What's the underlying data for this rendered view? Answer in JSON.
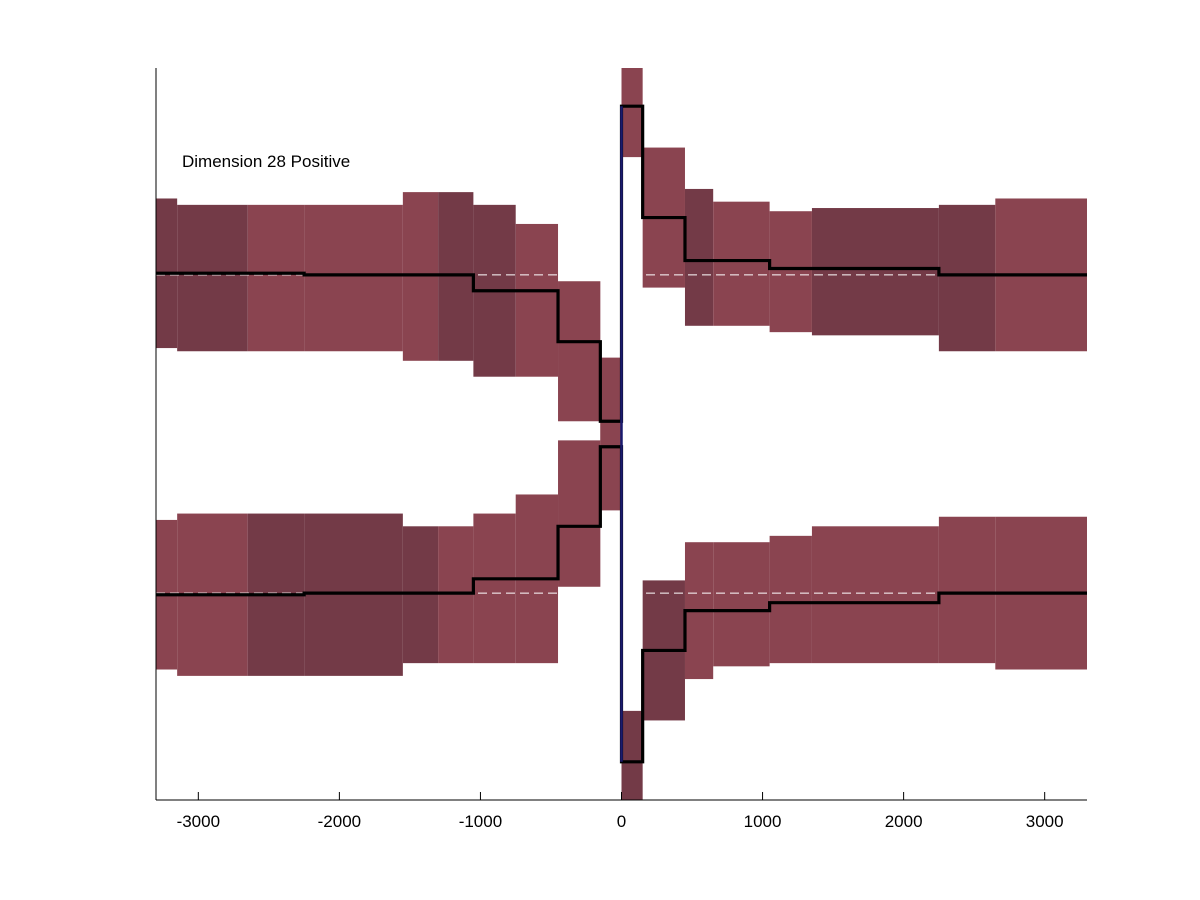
{
  "chart_data": {
    "type": "line",
    "title": "",
    "xlabel": "",
    "ylabel": "",
    "annotation": "Dimension 28 Positive",
    "xlim": [
      -3300,
      3300
    ],
    "ylim": [
      -1.15,
      1.15
    ],
    "grid": false,
    "legend": "none",
    "x_ticks": [
      {
        "value": -3000,
        "label": "-3000"
      },
      {
        "value": -2000,
        "label": "-2000"
      },
      {
        "value": -1000,
        "label": "-1000"
      },
      {
        "value": 0,
        "label": "0"
      },
      {
        "value": 1000,
        "label": "1000"
      },
      {
        "value": 2000,
        "label": "2000"
      },
      {
        "value": 3000,
        "label": "3000"
      }
    ],
    "colors": {
      "band_light": "#8a4450",
      "band_dark": "#733a47",
      "line": "#000000",
      "zero_trace": "#1a1a6e",
      "baseline": "#ffffff",
      "axis": "#000000"
    },
    "reference_levels": [
      0.5,
      -0.5
    ],
    "series": [
      {
        "name": "",
        "bins": [
          {
            "x0": -3300,
            "x1": -3150,
            "lo": 0.27,
            "hi": 0.74,
            "mean": 0.505,
            "shade": "dark"
          },
          {
            "x0": -3150,
            "x1": -2650,
            "lo": 0.26,
            "hi": 0.72,
            "mean": 0.505,
            "shade": "dark"
          },
          {
            "x0": -2650,
            "x1": -2250,
            "lo": 0.26,
            "hi": 0.72,
            "mean": 0.505,
            "shade": "light"
          },
          {
            "x0": -2250,
            "x1": -1550,
            "lo": 0.26,
            "hi": 0.72,
            "mean": 0.5,
            "shade": "light"
          },
          {
            "x0": -1550,
            "x1": -1300,
            "lo": 0.23,
            "hi": 0.76,
            "mean": 0.5,
            "shade": "light"
          },
          {
            "x0": -1300,
            "x1": -1050,
            "lo": 0.23,
            "hi": 0.76,
            "mean": 0.5,
            "shade": "dark"
          },
          {
            "x0": -1050,
            "x1": -750,
            "lo": 0.18,
            "hi": 0.72,
            "mean": 0.45,
            "shade": "dark"
          },
          {
            "x0": -750,
            "x1": -450,
            "lo": 0.18,
            "hi": 0.66,
            "mean": 0.45,
            "shade": "light"
          },
          {
            "x0": -450,
            "x1": -150,
            "lo": 0.04,
            "hi": 0.48,
            "mean": 0.29,
            "shade": "light"
          },
          {
            "x0": -150,
            "x1": 0,
            "lo": -0.06,
            "hi": 0.24,
            "mean": 0.04,
            "shade": "light"
          },
          {
            "x0": 0,
            "x1": 150,
            "lo": 0.87,
            "hi": 1.15,
            "mean": 1.03,
            "shade": "light"
          },
          {
            "x0": 150,
            "x1": 450,
            "lo": 0.46,
            "hi": 0.9,
            "mean": 0.68,
            "shade": "light"
          },
          {
            "x0": 450,
            "x1": 650,
            "lo": 0.34,
            "hi": 0.77,
            "mean": 0.545,
            "shade": "dark"
          },
          {
            "x0": 650,
            "x1": 1050,
            "lo": 0.34,
            "hi": 0.73,
            "mean": 0.545,
            "shade": "light"
          },
          {
            "x0": 1050,
            "x1": 1350,
            "lo": 0.32,
            "hi": 0.7,
            "mean": 0.52,
            "shade": "light"
          },
          {
            "x0": 1350,
            "x1": 2250,
            "lo": 0.31,
            "hi": 0.71,
            "mean": 0.52,
            "shade": "dark"
          },
          {
            "x0": 2250,
            "x1": 2650,
            "lo": 0.26,
            "hi": 0.72,
            "mean": 0.5,
            "shade": "dark"
          },
          {
            "x0": 2650,
            "x1": 3300,
            "lo": 0.26,
            "hi": 0.74,
            "mean": 0.5,
            "shade": "light"
          }
        ]
      },
      {
        "name": "",
        "bins": [
          {
            "x0": -3300,
            "x1": -3150,
            "lo": -0.74,
            "hi": -0.27,
            "mean": -0.505,
            "shade": "light"
          },
          {
            "x0": -3150,
            "x1": -2650,
            "lo": -0.76,
            "hi": -0.25,
            "mean": -0.505,
            "shade": "light"
          },
          {
            "x0": -2650,
            "x1": -2250,
            "lo": -0.76,
            "hi": -0.25,
            "mean": -0.505,
            "shade": "dark"
          },
          {
            "x0": -2250,
            "x1": -1550,
            "lo": -0.76,
            "hi": -0.25,
            "mean": -0.5,
            "shade": "dark"
          },
          {
            "x0": -1550,
            "x1": -1300,
            "lo": -0.72,
            "hi": -0.29,
            "mean": -0.5,
            "shade": "dark"
          },
          {
            "x0": -1300,
            "x1": -1050,
            "lo": -0.72,
            "hi": -0.29,
            "mean": -0.5,
            "shade": "light"
          },
          {
            "x0": -1050,
            "x1": -750,
            "lo": -0.72,
            "hi": -0.25,
            "mean": -0.455,
            "shade": "light"
          },
          {
            "x0": -750,
            "x1": -450,
            "lo": -0.72,
            "hi": -0.19,
            "mean": -0.455,
            "shade": "light"
          },
          {
            "x0": -450,
            "x1": -150,
            "lo": -0.48,
            "hi": -0.02,
            "mean": -0.29,
            "shade": "light"
          },
          {
            "x0": -150,
            "x1": 0,
            "lo": -0.24,
            "hi": 0.06,
            "mean": -0.04,
            "shade": "light"
          },
          {
            "x0": 0,
            "x1": 150,
            "lo": -1.15,
            "hi": -0.87,
            "mean": -1.03,
            "shade": "dark"
          },
          {
            "x0": 150,
            "x1": 450,
            "lo": -0.9,
            "hi": -0.46,
            "mean": -0.68,
            "shade": "dark"
          },
          {
            "x0": 450,
            "x1": 650,
            "lo": -0.77,
            "hi": -0.34,
            "mean": -0.555,
            "shade": "light"
          },
          {
            "x0": 650,
            "x1": 1050,
            "lo": -0.73,
            "hi": -0.34,
            "mean": -0.555,
            "shade": "light"
          },
          {
            "x0": 1050,
            "x1": 1350,
            "lo": -0.72,
            "hi": -0.32,
            "mean": -0.53,
            "shade": "light"
          },
          {
            "x0": 1350,
            "x1": 2250,
            "lo": -0.72,
            "hi": -0.29,
            "mean": -0.53,
            "shade": "light"
          },
          {
            "x0": 2250,
            "x1": 2650,
            "lo": -0.72,
            "hi": -0.26,
            "mean": -0.5,
            "shade": "light"
          },
          {
            "x0": 2650,
            "x1": 3300,
            "lo": -0.74,
            "hi": -0.26,
            "mean": -0.5,
            "shade": "light"
          }
        ]
      }
    ]
  }
}
